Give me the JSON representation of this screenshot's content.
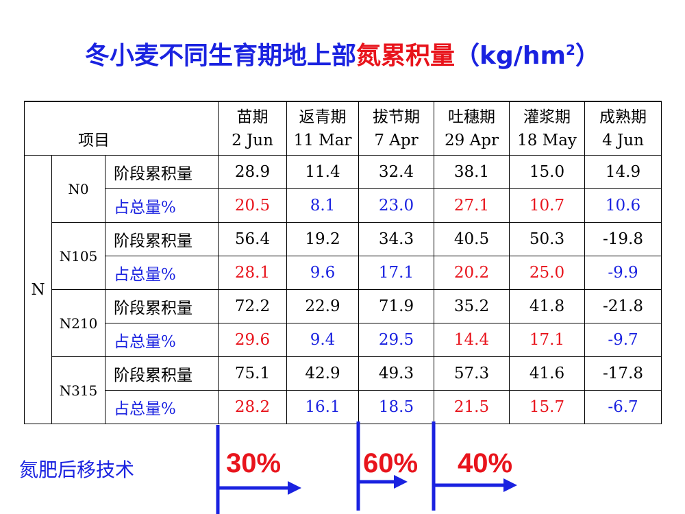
{
  "title": {
    "parts": [
      "冬小麦不同生育期地上部",
      "氮累积量",
      "（kg/hm",
      "2",
      "）"
    ]
  },
  "table": {
    "header_label": "项目",
    "columns": [
      {
        "stage": "苗期",
        "date": "2 Jun"
      },
      {
        "stage": "返青期",
        "date": "11 Mar"
      },
      {
        "stage": "拔节期",
        "date": "7 Apr"
      },
      {
        "stage": "吐穗期",
        "date": "29 Apr"
      },
      {
        "stage": "灌浆期",
        "date": "18 May"
      },
      {
        "stage": "成熟期",
        "date": "4 Jun"
      }
    ],
    "group": "N",
    "percent_colors": [
      "#e8141c",
      "#1a22e0",
      "#1a22e0",
      "#e8141c",
      "#e8141c",
      "#1a22e0"
    ],
    "subgroups": [
      {
        "name": "N0",
        "rows": [
          {
            "label": "阶段累积量",
            "values": [
              "28.9",
              "11.4",
              "32.4",
              "38.1",
              "15.0",
              "14.9"
            ]
          },
          {
            "label": "占总量%",
            "values": [
              "20.5",
              "8.1",
              "23.0",
              "27.1",
              "10.7",
              "10.6"
            ]
          }
        ]
      },
      {
        "name": "N105",
        "rows": [
          {
            "label": "阶段累积量",
            "values": [
              "56.4",
              "19.2",
              "34.3",
              "40.5",
              "50.3",
              "-19.8"
            ]
          },
          {
            "label": "占总量%",
            "values": [
              "28.1",
              "9.6",
              "17.1",
              "20.2",
              "25.0",
              "-9.9"
            ]
          }
        ]
      },
      {
        "name": "N210",
        "rows": [
          {
            "label": "阶段累积量",
            "values": [
              "72.2",
              "22.9",
              "71.9",
              "35.2",
              "41.8",
              "-21.8"
            ]
          },
          {
            "label": "占总量%",
            "values": [
              "29.6",
              "9.4",
              "29.5",
              "14.4",
              "17.1",
              "-9.7"
            ]
          }
        ]
      },
      {
        "name": "N315",
        "rows": [
          {
            "label": "阶段累积量",
            "values": [
              "75.1",
              "42.9",
              "49.3",
              "57.3",
              "41.6",
              "-17.8"
            ]
          },
          {
            "label": "占总量%",
            "values": [
              "28.2",
              "16.1",
              "18.5",
              "21.5",
              "15.7",
              "-6.7"
            ]
          }
        ]
      }
    ]
  },
  "footer": {
    "label": "氮肥后移技术",
    "arrow_labels": [
      "30%",
      "60%",
      "40%"
    ]
  }
}
